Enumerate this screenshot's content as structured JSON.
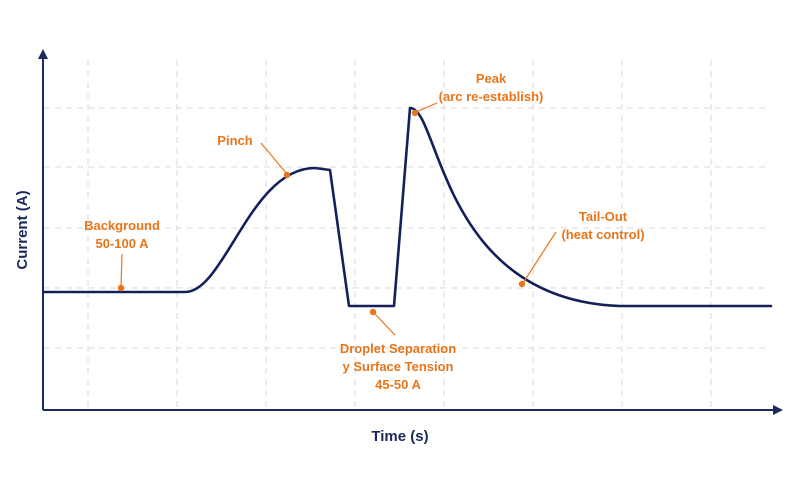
{
  "diagram": {
    "x_axis_label": "Time (s)",
    "y_axis_label": "Current (A)",
    "annotations": {
      "background": [
        "Background",
        "50-100 A"
      ],
      "pinch": [
        "Pinch"
      ],
      "peak": [
        "Peak",
        "(arc re-establish)"
      ],
      "tail_out": [
        "Tail-Out",
        "(heat control)"
      ],
      "droplet": [
        "Droplet Separation",
        "y Surface Tension",
        "45-50 A"
      ]
    },
    "colors": {
      "waveform": "#13205a",
      "axis": "#1b2a5c",
      "annotation": "#e8751a",
      "grid": "#d9d9d9"
    }
  }
}
